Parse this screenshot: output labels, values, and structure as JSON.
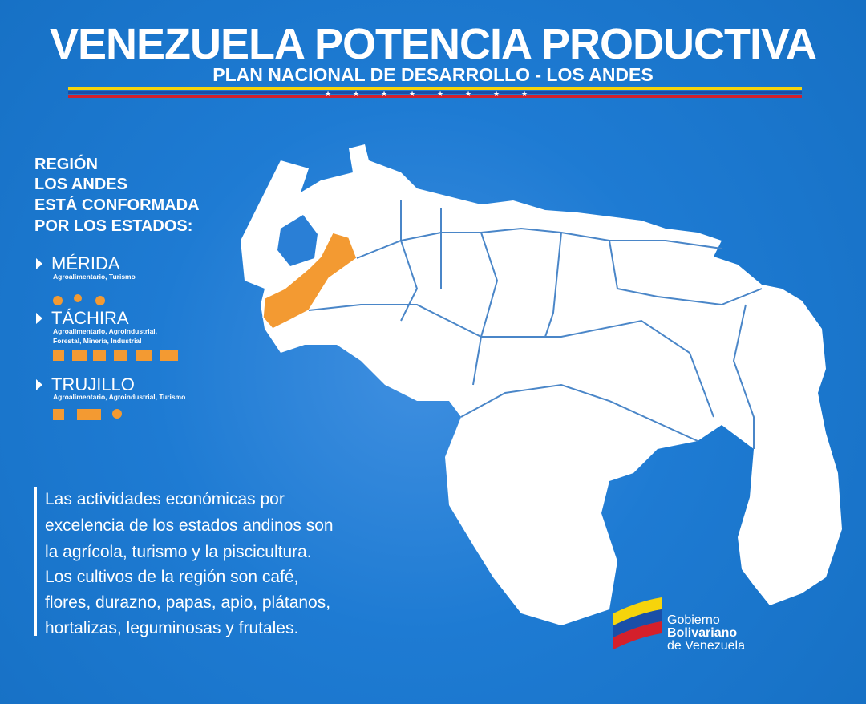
{
  "header": {
    "title": "VENEZUELA POTENCIA PRODUCTIVA",
    "subtitle": "PLAN NACIONAL DE DESARROLLO - LOS ANDES"
  },
  "region": {
    "heading": [
      "REGIÓN",
      "LOS ANDES",
      "ESTÁ CONFORMADA",
      "POR LOS ESTADOS:"
    ],
    "states": [
      {
        "name": "MÉRIDA",
        "activities": [
          "Agroalimentario, Turismo"
        ]
      },
      {
        "name": "TÁCHIRA",
        "activities": [
          "Agroalimentario, Agroindustrial,",
          "Forestal, Minería, Industrial"
        ]
      },
      {
        "name": "TRUJILLO",
        "activities": [
          "Agroalimentario, Agroindustrial, Turismo"
        ]
      }
    ]
  },
  "description": [
    "Las actividades económicas por",
    "excelencia de los estados andinos son",
    "la agrícola, turismo y la piscicultura.",
    "Los cultivos de la región son café,",
    "flores, durazno,  papas, apio, plátanos,",
    "hortalizas, leguminosas y frutales."
  ],
  "logo": [
    "Gobierno",
    "Bolivariano",
    "de Venezuela"
  ]
}
